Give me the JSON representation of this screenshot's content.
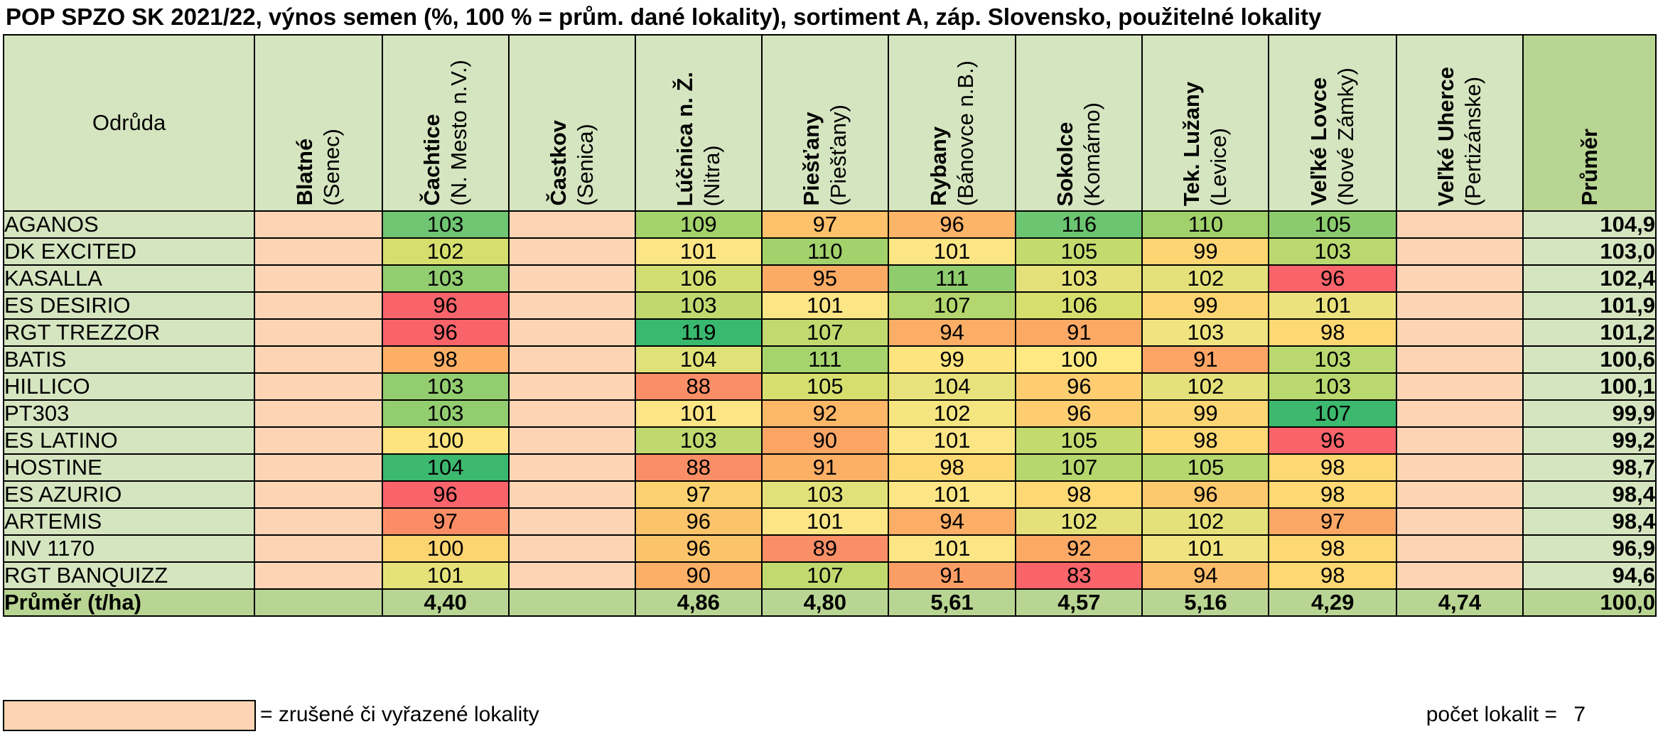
{
  "title": "POP SPZO SK 2021/22, výnos semen (%, 100 % = prům. dané lokality), sortiment A, záp. Slovensko, použitelné lokality",
  "header": {
    "variety": "Odrůda",
    "average": "Průměr",
    "locations": [
      {
        "name": "Blatné",
        "sub": "(Senec)"
      },
      {
        "name": "Čachtice",
        "sub": "(N. Mesto n.V.)"
      },
      {
        "name": "Častkov",
        "sub": "(Senica)"
      },
      {
        "name": "Lúčnica n. Ž.",
        "sub": "(Nitra)"
      },
      {
        "name": "Piešťany",
        "sub": "(Piešťany)"
      },
      {
        "name": "Rybany",
        "sub": "(Bánovce n.B.)"
      },
      {
        "name": "Sokolce",
        "sub": "(Komárno)"
      },
      {
        "name": "Tek. Lužany",
        "sub": "(Levice)"
      },
      {
        "name": "Veľké Lovce",
        "sub": "(Nové Zámky)"
      },
      {
        "name": "Veľké Uherce",
        "sub": "(Pertizánske)"
      }
    ]
  },
  "rows": [
    {
      "name": "AGANOS",
      "values": [
        "",
        "103",
        "",
        "109",
        "97",
        "96",
        "116",
        "110",
        "105",
        ""
      ],
      "avg": "104,9"
    },
    {
      "name": "DK EXCITED",
      "values": [
        "",
        "102",
        "",
        "101",
        "110",
        "101",
        "105",
        "99",
        "103",
        ""
      ],
      "avg": "103,0"
    },
    {
      "name": "KASALLA",
      "values": [
        "",
        "103",
        "",
        "106",
        "95",
        "111",
        "103",
        "102",
        "96",
        ""
      ],
      "avg": "102,4"
    },
    {
      "name": "ES DESIRIO",
      "values": [
        "",
        "96",
        "",
        "103",
        "101",
        "107",
        "106",
        "99",
        "101",
        ""
      ],
      "avg": "101,9"
    },
    {
      "name": "RGT TREZZOR",
      "values": [
        "",
        "96",
        "",
        "119",
        "107",
        "94",
        "91",
        "103",
        "98",
        ""
      ],
      "avg": "101,2"
    },
    {
      "name": "BATIS",
      "values": [
        "",
        "98",
        "",
        "104",
        "111",
        "99",
        "100",
        "91",
        "103",
        ""
      ],
      "avg": "100,6"
    },
    {
      "name": "HILLICO",
      "values": [
        "",
        "103",
        "",
        "88",
        "105",
        "104",
        "96",
        "102",
        "103",
        ""
      ],
      "avg": "100,1"
    },
    {
      "name": "PT303",
      "values": [
        "",
        "103",
        "",
        "101",
        "92",
        "102",
        "96",
        "99",
        "107",
        ""
      ],
      "avg": "99,9"
    },
    {
      "name": "ES LATINO",
      "values": [
        "",
        "100",
        "",
        "103",
        "90",
        "101",
        "105",
        "98",
        "96",
        ""
      ],
      "avg": "99,2"
    },
    {
      "name": "HOSTINE",
      "values": [
        "",
        "104",
        "",
        "88",
        "91",
        "98",
        "107",
        "105",
        "98",
        ""
      ],
      "avg": "98,7"
    },
    {
      "name": "ES AZURIO",
      "values": [
        "",
        "96",
        "",
        "97",
        "103",
        "101",
        "98",
        "96",
        "98",
        ""
      ],
      "avg": "98,4"
    },
    {
      "name": "ARTEMIS",
      "values": [
        "",
        "97",
        "",
        "96",
        "101",
        "94",
        "102",
        "102",
        "97",
        ""
      ],
      "avg": "98,4"
    },
    {
      "name": "INV 1170",
      "values": [
        "",
        "100",
        "",
        "96",
        "89",
        "101",
        "92",
        "101",
        "98",
        ""
      ],
      "avg": "96,9"
    },
    {
      "name": "RGT BANQUIZZ",
      "values": [
        "",
        "101",
        "",
        "90",
        "107",
        "91",
        "83",
        "94",
        "98",
        ""
      ],
      "avg": "94,6"
    }
  ],
  "cell_colors": [
    [
      "",
      "#70c572",
      "",
      "#a5d36b",
      "#fcc16a",
      "#fcb468",
      "#6bc571",
      "#a1d16c",
      "#8bcb6e",
      ""
    ],
    [
      "",
      "#d6df6e",
      "",
      "#fbe585",
      "#a3d26c",
      "#fbe585",
      "#c3da6f",
      "#fdd573",
      "#b9d86f",
      ""
    ],
    [
      "",
      "#92cd70",
      "",
      "#d3de72",
      "#fbab64",
      "#8fcc6e",
      "#e4e17a",
      "#e4e17a",
      "#f8646a",
      ""
    ],
    [
      "",
      "#f8646a",
      "",
      "#bfd96f",
      "#fbe585",
      "#b4d66e",
      "#d6df6e",
      "#fdd573",
      "#ebe27e",
      ""
    ],
    [
      "",
      "#f8646a",
      "",
      "#39b86f",
      "#c1d96f",
      "#fcad66",
      "#fca965",
      "#f0e481",
      "#fdd873",
      ""
    ],
    [
      "",
      "#fcaf65",
      "",
      "#e1e179",
      "#a6d36c",
      "#fde47f",
      "#fee983",
      "#fca565",
      "#b9d86f",
      ""
    ],
    [
      "",
      "#92cd70",
      "",
      "#fa8e66",
      "#d6df6e",
      "#e8e27c",
      "#fdcd70",
      "#e4e17a",
      "#b9d86f",
      ""
    ],
    [
      "",
      "#92cd70",
      "",
      "#fbe585",
      "#fcb767",
      "#f4e580",
      "#fdcd70",
      "#fdd573",
      "#3cb86f",
      ""
    ],
    [
      "",
      "#fde47f",
      "",
      "#bfd96f",
      "#fba565",
      "#fbe585",
      "#c3da6f",
      "#fdd873",
      "#f8646a",
      ""
    ],
    [
      "",
      "#3cb86f",
      "",
      "#fa8e66",
      "#fbb066",
      "#fdd873",
      "#b5d76e",
      "#b5d76e",
      "#fdd873",
      ""
    ],
    [
      "",
      "#f8646a",
      "",
      "#fcd170",
      "#e1e179",
      "#fbe585",
      "#fdd873",
      "#fdc96e",
      "#fdd873",
      ""
    ],
    [
      "",
      "#fb8d66",
      "",
      "#fcc46a",
      "#fbe585",
      "#fcad66",
      "#e4e17a",
      "#e4e17a",
      "#fba866",
      ""
    ],
    [
      "",
      "#fcd571",
      "",
      "#fcc46a",
      "#fa8e66",
      "#fbe585",
      "#fca965",
      "#f0e481",
      "#fdd873",
      ""
    ],
    [
      "",
      "#e6e27a",
      "",
      "#fcb067",
      "#c1d96f",
      "#fb9e66",
      "#f8646a",
      "#fdbe6b",
      "#fdd873",
      ""
    ]
  ],
  "footer": {
    "name": "Průměr (t/ha)",
    "values": [
      "",
      "4,40",
      "",
      "4,86",
      "4,80",
      "5,61",
      "4,57",
      "5,16",
      "4,29",
      "4,74"
    ],
    "avg": "100,0"
  },
  "legend": {
    "text": "= zrušené či vyřazené lokality",
    "count_label": "počet lokalit =",
    "count_value": "7"
  }
}
